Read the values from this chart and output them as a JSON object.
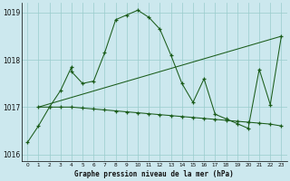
{
  "xlabel": "Graphe pression niveau de la mer (hPa)",
  "xlim": [
    -0.5,
    23.5
  ],
  "ylim": [
    1015.85,
    1019.2
  ],
  "yticks": [
    1016,
    1017,
    1018,
    1019
  ],
  "xticks": [
    0,
    1,
    2,
    3,
    4,
    5,
    6,
    7,
    8,
    9,
    10,
    11,
    12,
    13,
    14,
    15,
    16,
    17,
    18,
    19,
    20,
    21,
    22,
    23
  ],
  "bg_color": "#cce8ee",
  "grid_color": "#99cccc",
  "line_color": "#1a5c1a",
  "line1_x": [
    0,
    1,
    2,
    3,
    4,
    4,
    5,
    6,
    7,
    8,
    9,
    10,
    11,
    12,
    13,
    14,
    15,
    16,
    17,
    18,
    19,
    20,
    21,
    22,
    23
  ],
  "line1_y": [
    1016.25,
    1016.6,
    1017.0,
    1017.35,
    1017.85,
    1017.75,
    1017.5,
    1017.55,
    1018.15,
    1018.85,
    1018.95,
    1019.05,
    1018.9,
    1018.65,
    1018.1,
    1017.5,
    1017.1,
    1017.6,
    1016.85,
    1016.75,
    1016.65,
    1016.55,
    1017.8,
    1017.05,
    1018.5
  ],
  "line2_x": [
    1,
    2,
    3,
    4,
    5,
    6,
    7,
    8,
    9,
    10,
    11,
    12,
    13,
    14,
    15,
    16,
    17,
    18,
    19,
    20,
    21,
    22,
    23
  ],
  "line2_y": [
    1017.0,
    1017.0,
    1017.0,
    1017.0,
    1016.98,
    1016.96,
    1016.94,
    1016.92,
    1016.9,
    1016.88,
    1016.86,
    1016.84,
    1016.82,
    1016.8,
    1016.78,
    1016.76,
    1016.74,
    1016.72,
    1016.7,
    1016.68,
    1016.66,
    1016.64,
    1016.6
  ],
  "line3_x": [
    1,
    23
  ],
  "line3_y": [
    1017.0,
    1018.5
  ]
}
